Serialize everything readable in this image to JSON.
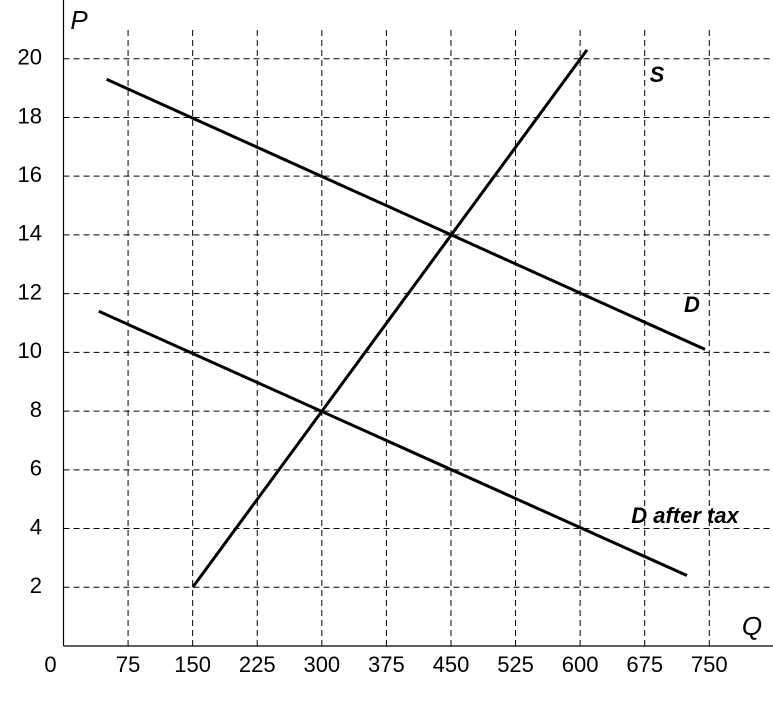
{
  "chart_data": {
    "type": "line",
    "x_label": "Q",
    "y_label": "P",
    "xlim": [
      0,
      824
    ],
    "ylim": [
      0,
      22
    ],
    "xticks": [
      0,
      75,
      150,
      225,
      300,
      375,
      450,
      525,
      600,
      675,
      750
    ],
    "yticks": [
      2,
      4,
      6,
      8,
      10,
      12,
      14,
      16,
      18,
      20
    ],
    "grid": true,
    "series": [
      {
        "name": "S",
        "color": "#000000",
        "x": [
          150,
          608
        ],
        "values": [
          2,
          20.3
        ]
      },
      {
        "name": "D",
        "color": "#000000",
        "x": [
          50,
          745
        ],
        "values": [
          19.3,
          10.1
        ]
      },
      {
        "name": "D after tax",
        "color": "#000000",
        "x": [
          41,
          724
        ],
        "values": [
          11.4,
          2.4
        ]
      }
    ]
  }
}
